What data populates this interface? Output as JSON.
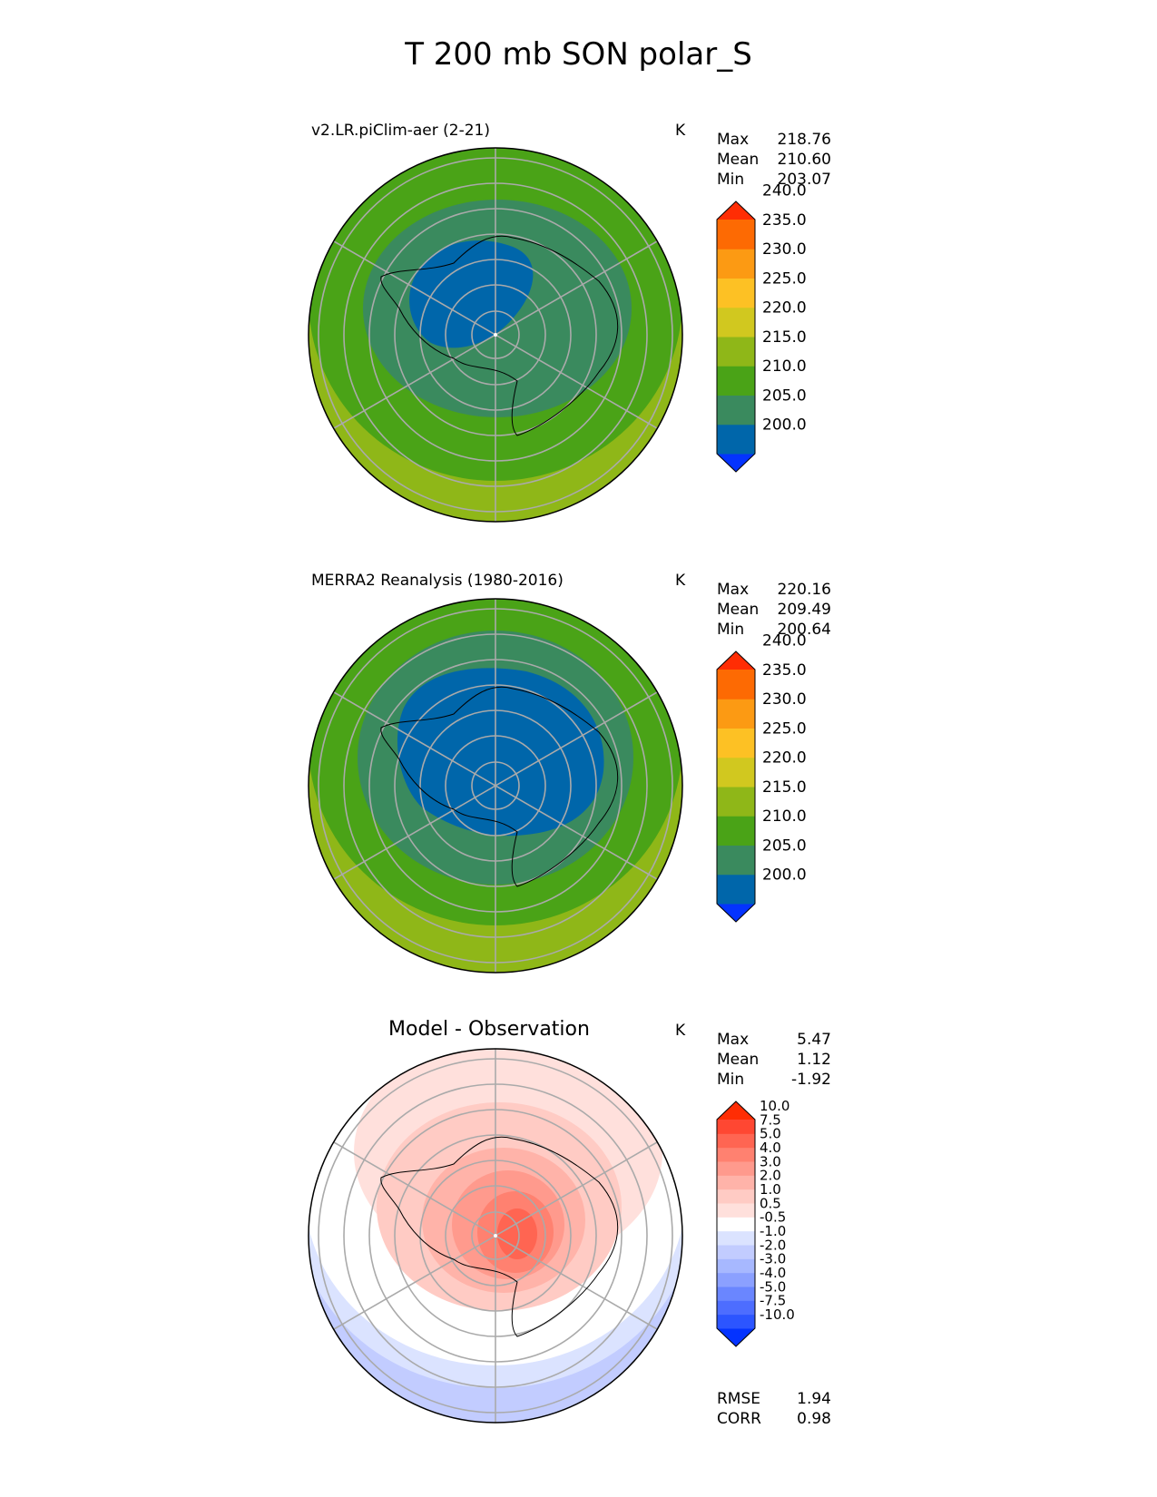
{
  "figure_title": "T 200 mb SON polar_S",
  "panels": [
    {
      "title": "v2.LR.piClim-aer (2-21)",
      "units": "K",
      "stats": [
        {
          "label": "Max",
          "value": "218.76"
        },
        {
          "label": "Mean",
          "value": "210.60"
        },
        {
          "label": "Min",
          "value": "203.07"
        }
      ],
      "colorbar": {
        "colors": [
          "#0433ff",
          "#0066aa",
          "#3a8a5e",
          "#4aa317",
          "#8fb718",
          "#d1c81f",
          "#fdc124",
          "#fc9a13",
          "#fd6a03",
          "#ff2d04"
        ],
        "tick_labels": [
          "200.0",
          "205.0",
          "210.0",
          "215.0",
          "220.0",
          "225.0",
          "230.0",
          "235.0",
          "240.0"
        ]
      }
    },
    {
      "title": "MERRA2 Reanalysis (1980-2016)",
      "units": "K",
      "stats": [
        {
          "label": "Max",
          "value": "220.16"
        },
        {
          "label": "Mean",
          "value": "209.49"
        },
        {
          "label": "Min",
          "value": "200.64"
        }
      ],
      "colorbar": {
        "colors": [
          "#0433ff",
          "#0066aa",
          "#3a8a5e",
          "#4aa317",
          "#8fb718",
          "#d1c81f",
          "#fdc124",
          "#fc9a13",
          "#fd6a03",
          "#ff2d04"
        ],
        "tick_labels": [
          "200.0",
          "205.0",
          "210.0",
          "215.0",
          "220.0",
          "225.0",
          "230.0",
          "235.0",
          "240.0"
        ]
      }
    },
    {
      "title": "Model - Observation",
      "units": "K",
      "stats": [
        {
          "label": "Max",
          "value": "5.47"
        },
        {
          "label": "Mean",
          "value": "1.12"
        },
        {
          "label": "Min",
          "value": "-1.92"
        }
      ],
      "colorbar": {
        "colors": [
          "#0433ff",
          "#2c55ff",
          "#4d6dff",
          "#6a86ff",
          "#8ba0ff",
          "#a7b8ff",
          "#c2ccff",
          "#dbe3ff",
          "#ffffff",
          "#ffe0dc",
          "#ffcbc4",
          "#ffb3a9",
          "#ff9a8d",
          "#ff8170",
          "#ff6552",
          "#ff4732",
          "#ff2d04"
        ],
        "tick_labels": [
          "-10.0",
          "-7.5",
          "-5.0",
          "-4.0",
          "-3.0",
          "-2.0",
          "-1.0",
          "-0.5",
          "0.5",
          "1.0",
          "2.0",
          "3.0",
          "4.0",
          "5.0",
          "7.5",
          "10.0"
        ]
      },
      "extra_stats": [
        {
          "label": "RMSE",
          "value": "1.94"
        },
        {
          "label": "CORR",
          "value": "0.98"
        }
      ]
    }
  ]
}
